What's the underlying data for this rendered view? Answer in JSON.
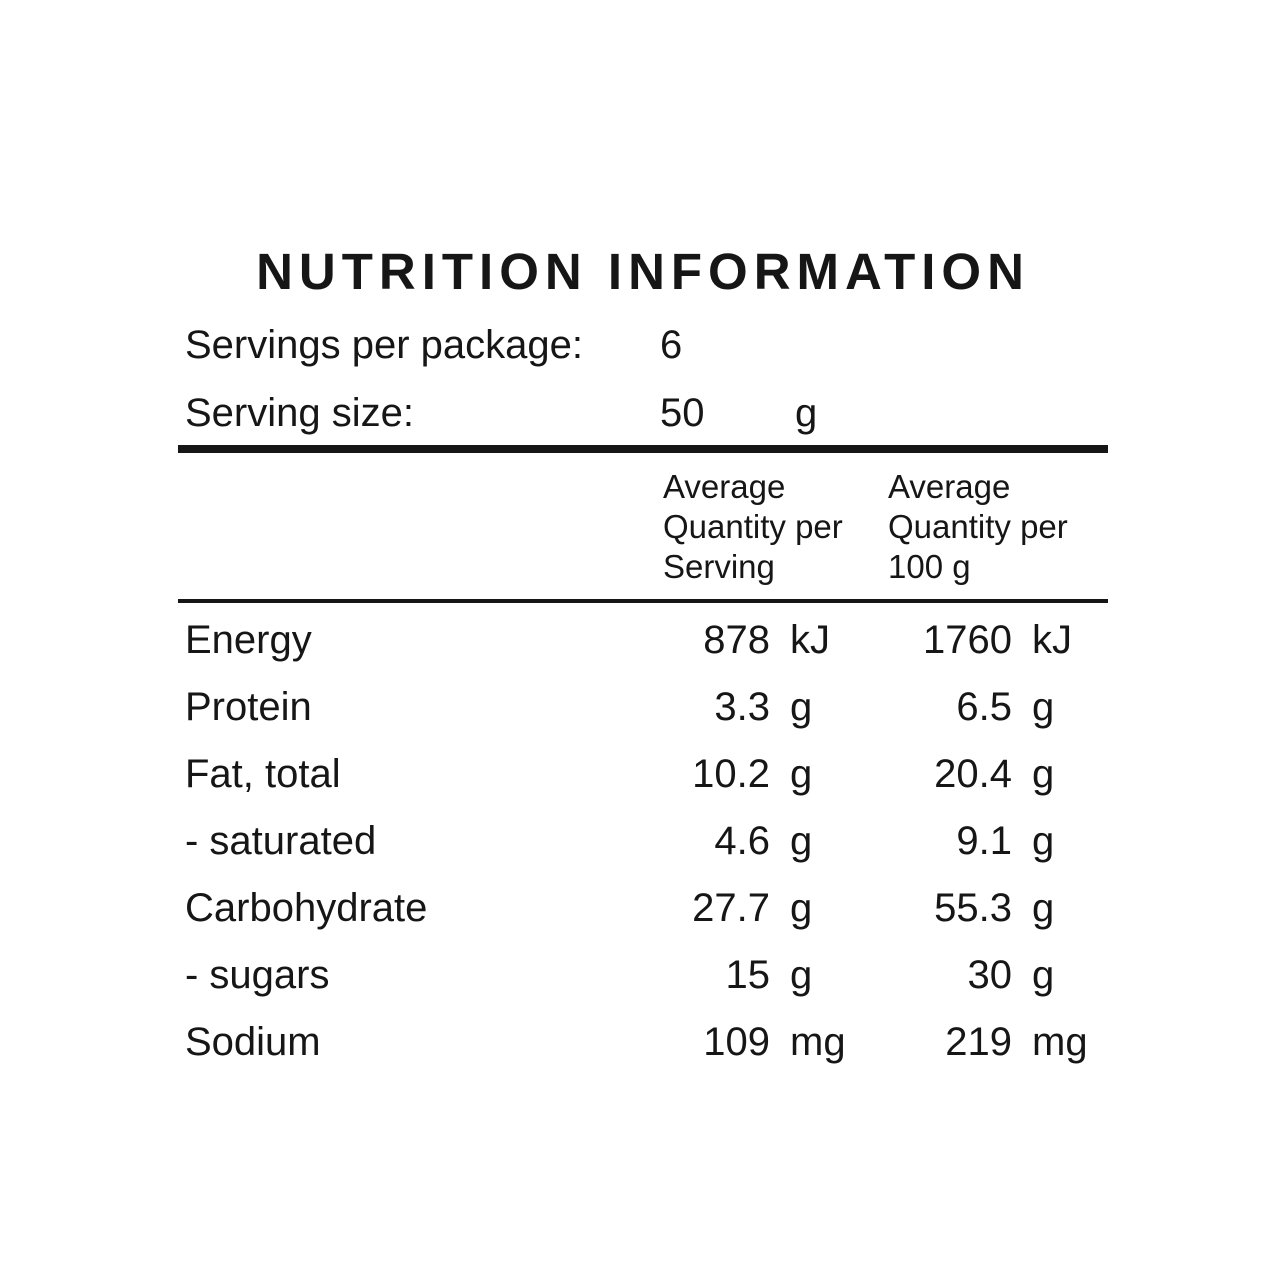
{
  "title": "NUTRITION INFORMATION",
  "package_info": {
    "servings_label": "Servings per package:",
    "servings_value": "6",
    "serving_size_label": "Serving size:",
    "serving_size_value": "50",
    "serving_size_unit": "g"
  },
  "table": {
    "col_header_per_serving": "Average\nQuantity per\nServing",
    "col_header_per_100g": "Average\nQuantity per\n100 g",
    "rows": [
      {
        "label": "Energy",
        "per_serving_value": "878",
        "per_serving_unit": "kJ",
        "per_100g_value": "1760",
        "per_100g_unit": "kJ"
      },
      {
        "label": "Protein",
        "per_serving_value": "3.3",
        "per_serving_unit": "g",
        "per_100g_value": "6.5",
        "per_100g_unit": "g"
      },
      {
        "label": "Fat, total",
        "per_serving_value": "10.2",
        "per_serving_unit": "g",
        "per_100g_value": "20.4",
        "per_100g_unit": "g"
      },
      {
        "label": "- saturated",
        "per_serving_value": "4.6",
        "per_serving_unit": "g",
        "per_100g_value": "9.1",
        "per_100g_unit": "g"
      },
      {
        "label": "Carbohydrate",
        "per_serving_value": "27.7",
        "per_serving_unit": "g",
        "per_100g_value": "55.3",
        "per_100g_unit": "g"
      },
      {
        "label": "- sugars",
        "per_serving_value": "15",
        "per_serving_unit": "g",
        "per_100g_value": "30",
        "per_100g_unit": "g"
      },
      {
        "label": "Sodium",
        "per_serving_value": "109",
        "per_serving_unit": "mg",
        "per_100g_value": "219",
        "per_100g_unit": "mg"
      }
    ]
  },
  "colors": {
    "background": "#ffffff",
    "text": "#161616",
    "rule": "#161616"
  }
}
